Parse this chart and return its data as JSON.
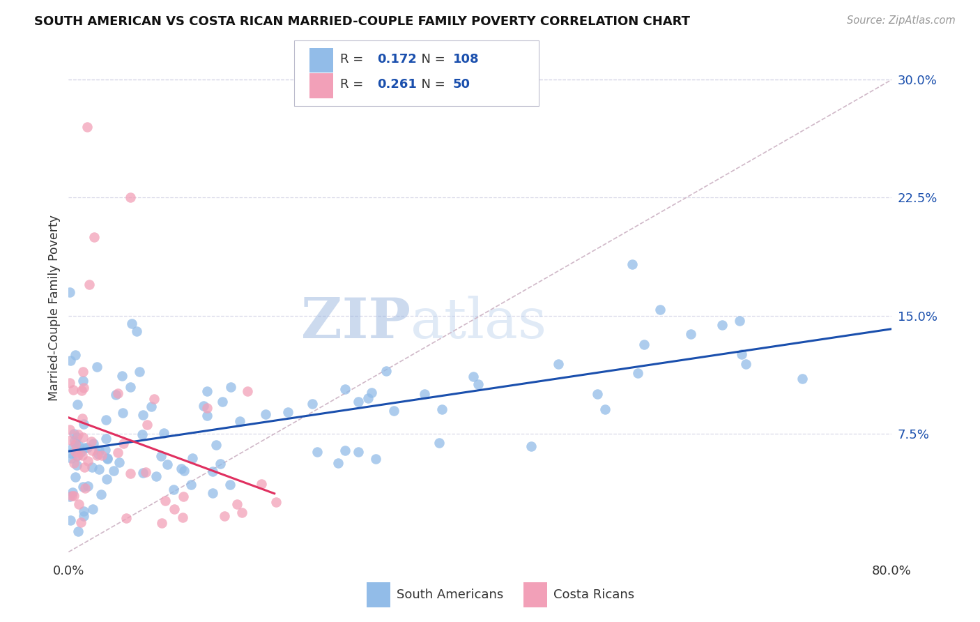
{
  "title": "SOUTH AMERICAN VS COSTA RICAN MARRIED-COUPLE FAMILY POVERTY CORRELATION CHART",
  "source": "Source: ZipAtlas.com",
  "ylabel": "Married-Couple Family Poverty",
  "xlim": [
    0.0,
    0.8
  ],
  "ylim": [
    -0.005,
    0.315
  ],
  "xtick_positions": [
    0.0,
    0.1,
    0.2,
    0.3,
    0.4,
    0.5,
    0.6,
    0.7,
    0.8
  ],
  "xticklabels": [
    "0.0%",
    "",
    "",
    "",
    "",
    "",
    "",
    "",
    "80.0%"
  ],
  "yticks_right": [
    0.075,
    0.15,
    0.225,
    0.3
  ],
  "yticklabels_right": [
    "7.5%",
    "15.0%",
    "22.5%",
    "30.0%"
  ],
  "blue_color": "#92bce8",
  "pink_color": "#f2a0b8",
  "trend_blue": "#1a4fad",
  "trend_pink": "#e03060",
  "diag_color": "#d0b8c8",
  "legend_R_blue": "0.172",
  "legend_N_blue": "108",
  "legend_R_pink": "0.261",
  "legend_N_pink": "50",
  "legend_label_blue": "South Americans",
  "legend_label_pink": "Costa Ricans",
  "grid_color": "#d8d8e8",
  "watermark_zip_color": "#c8d4ec",
  "watermark_atlas_color": "#b8cce8"
}
